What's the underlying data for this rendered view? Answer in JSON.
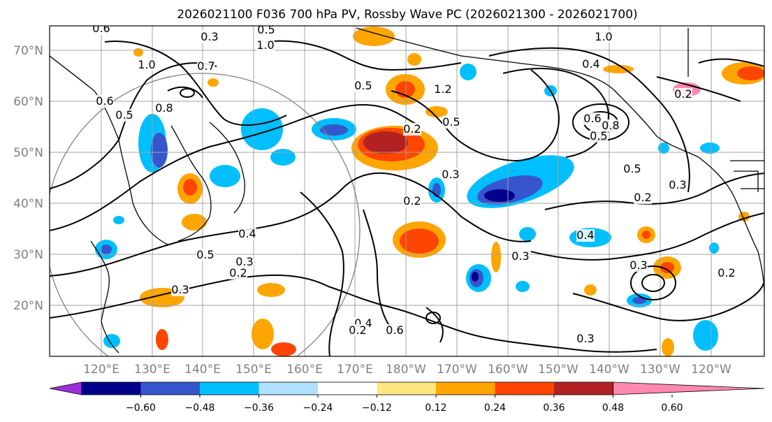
{
  "title": "2026021100 F036 700 hPa PV, Rossby Wave PC (2026021300 - 2026021700)",
  "map": {
    "lat_labels": [
      "70°N",
      "60°N",
      "50°N",
      "40°N",
      "30°N",
      "20°N"
    ],
    "lon_labels": [
      "120°E",
      "130°E",
      "140°E",
      "150°E",
      "160°E",
      "170°E",
      "180°W",
      "170°W",
      "160°W",
      "150°W",
      "140°W",
      "130°W",
      "120°W"
    ],
    "contour_labels": [
      "0.6",
      "0.3",
      "0.5",
      "1.0",
      "0.7",
      "1.0",
      "0.8",
      "0.5",
      "0.6",
      "1.2",
      "1.0",
      "0.4",
      "0.2",
      "0.5",
      "0.3",
      "0.2",
      "0.4",
      "0.5",
      "0.3",
      "0.2",
      "0.3",
      "0.4",
      "0.2",
      "0.6",
      "0.5",
      "0.3",
      "0.2",
      "0.4",
      "0.3",
      "0.2",
      "0.6",
      "0.8",
      "0.5",
      "0.3",
      "0.5",
      "0.2",
      "0.3"
    ]
  },
  "colorbar": {
    "ticks": [
      "−0.60",
      "−0.48",
      "−0.36",
      "−0.24",
      "−0.12",
      "0.12",
      "0.24",
      "0.36",
      "0.48",
      "0.60"
    ],
    "colors": [
      "#9b30d9",
      "#00008b",
      "#3556cc",
      "#00bfff",
      "#b0e0ff",
      "#ffffff",
      "#ffe680",
      "#ffa500",
      "#ff4500",
      "#b22222",
      "#ff88b0"
    ]
  }
}
